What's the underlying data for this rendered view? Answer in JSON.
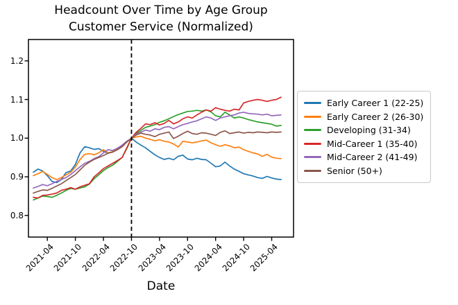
{
  "figure": {
    "title_line1": "Headcount Over Time by Age Group",
    "title_line2": "Customer Service (Normalized)",
    "xlabel": "Date"
  },
  "chart_data": {
    "type": "line",
    "title": "Headcount Over Time by Age Group",
    "subtitle": "Customer Service (Normalized)",
    "xlabel": "Date",
    "ylabel": "",
    "grid": false,
    "legend_position": "right-outside",
    "ylim": [
      0.743,
      1.254
    ],
    "y_ticks": [
      0.8,
      0.9,
      1.0,
      1.1,
      1.2
    ],
    "y_tick_labels": [
      "0.8",
      "0.9",
      "1.0",
      "1.1",
      "1.2"
    ],
    "x_tick_labels": [
      "2021-04",
      "2021-10",
      "2022-04",
      "2022-10",
      "2023-04",
      "2023-10",
      "2024-04",
      "2024-10",
      "2025-04"
    ],
    "x_tick_month_index": [
      3,
      9,
      15,
      21,
      27,
      33,
      39,
      45,
      51
    ],
    "normalization_vline": {
      "month": "2022-10",
      "index": 21,
      "style": "dashed",
      "color": "#000000"
    },
    "x": [
      "2021-01",
      "2021-02",
      "2021-03",
      "2021-04",
      "2021-05",
      "2021-06",
      "2021-07",
      "2021-08",
      "2021-09",
      "2021-10",
      "2021-11",
      "2021-12",
      "2022-01",
      "2022-02",
      "2022-03",
      "2022-04",
      "2022-05",
      "2022-06",
      "2022-07",
      "2022-08",
      "2022-09",
      "2022-10",
      "2022-11",
      "2022-12",
      "2023-01",
      "2023-02",
      "2023-03",
      "2023-04",
      "2023-05",
      "2023-06",
      "2023-07",
      "2023-08",
      "2023-09",
      "2023-10",
      "2023-11",
      "2023-12",
      "2024-01",
      "2024-02",
      "2024-03",
      "2024-04",
      "2024-05",
      "2024-06",
      "2024-07",
      "2024-08",
      "2024-09",
      "2024-10",
      "2024-11",
      "2024-12",
      "2025-01",
      "2025-02",
      "2025-03",
      "2025-04",
      "2025-05",
      "2025-06"
    ],
    "series": [
      {
        "name": "Early Career 1 (22-25)",
        "color": "#1f77b4",
        "values": [
          0.912,
          0.92,
          0.915,
          0.903,
          0.888,
          0.885,
          0.893,
          0.911,
          0.915,
          0.932,
          0.962,
          0.978,
          0.975,
          0.971,
          0.973,
          0.966,
          0.961,
          0.965,
          0.973,
          0.98,
          0.99,
          1.0,
          0.99,
          0.982,
          0.975,
          0.966,
          0.957,
          0.95,
          0.945,
          0.948,
          0.944,
          0.953,
          0.956,
          0.946,
          0.944,
          0.948,
          0.945,
          0.944,
          0.935,
          0.926,
          0.928,
          0.938,
          0.928,
          0.92,
          0.914,
          0.908,
          0.905,
          0.902,
          0.898,
          0.896,
          0.901,
          0.897,
          0.894,
          0.893
        ]
      },
      {
        "name": "Early Career 2 (26-30)",
        "color": "#ff7f0e",
        "values": [
          0.903,
          0.908,
          0.914,
          0.906,
          0.898,
          0.893,
          0.898,
          0.905,
          0.912,
          0.925,
          0.945,
          0.958,
          0.96,
          0.957,
          0.962,
          0.97,
          0.962,
          0.965,
          0.971,
          0.978,
          0.99,
          1.0,
          1.003,
          1.005,
          1.0,
          0.997,
          0.993,
          0.996,
          0.992,
          0.99,
          0.985,
          0.977,
          0.992,
          0.99,
          0.988,
          0.99,
          0.993,
          0.995,
          0.988,
          0.983,
          0.979,
          0.983,
          0.98,
          0.975,
          0.977,
          0.97,
          0.966,
          0.962,
          0.959,
          0.953,
          0.958,
          0.951,
          0.948,
          0.947
        ]
      },
      {
        "name": "Developing (31-34)",
        "color": "#2ca02c",
        "values": [
          0.84,
          0.845,
          0.85,
          0.849,
          0.847,
          0.852,
          0.858,
          0.865,
          0.87,
          0.868,
          0.871,
          0.874,
          0.881,
          0.895,
          0.905,
          0.916,
          0.924,
          0.93,
          0.94,
          0.95,
          0.973,
          1.0,
          1.012,
          1.02,
          1.028,
          1.031,
          1.035,
          1.041,
          1.045,
          1.05,
          1.056,
          1.061,
          1.065,
          1.069,
          1.07,
          1.072,
          1.07,
          1.073,
          1.068,
          1.058,
          1.055,
          1.067,
          1.06,
          1.052,
          1.055,
          1.052,
          1.048,
          1.045,
          1.042,
          1.04,
          1.038,
          1.036,
          1.031,
          1.033
        ]
      },
      {
        "name": "Mid-Career 1 (35-40)",
        "color": "#d62728",
        "values": [
          0.847,
          0.845,
          0.852,
          0.853,
          0.855,
          0.858,
          0.865,
          0.868,
          0.872,
          0.868,
          0.874,
          0.878,
          0.882,
          0.9,
          0.91,
          0.921,
          0.928,
          0.935,
          0.942,
          0.95,
          0.975,
          1.0,
          1.015,
          1.025,
          1.037,
          1.035,
          1.04,
          1.034,
          1.038,
          1.046,
          1.037,
          1.042,
          1.05,
          1.055,
          1.052,
          1.06,
          1.067,
          1.073,
          1.07,
          1.079,
          1.075,
          1.072,
          1.07,
          1.075,
          1.073,
          1.091,
          1.095,
          1.098,
          1.1,
          1.098,
          1.095,
          1.098,
          1.1,
          1.106
        ]
      },
      {
        "name": "Mid-Career 2 (41-49)",
        "color": "#9467bd",
        "values": [
          0.871,
          0.875,
          0.88,
          0.877,
          0.882,
          0.888,
          0.893,
          0.898,
          0.906,
          0.916,
          0.926,
          0.935,
          0.94,
          0.947,
          0.952,
          0.962,
          0.97,
          0.968,
          0.974,
          0.982,
          0.992,
          1.0,
          1.01,
          1.015,
          1.021,
          1.018,
          1.024,
          1.022,
          1.028,
          1.03,
          1.024,
          1.03,
          1.035,
          1.038,
          1.042,
          1.045,
          1.05,
          1.055,
          1.052,
          1.046,
          1.052,
          1.055,
          1.058,
          1.06,
          1.065,
          1.067,
          1.064,
          1.063,
          1.062,
          1.06,
          1.062,
          1.058,
          1.059,
          1.06
        ]
      },
      {
        "name": "Senior (50+)",
        "color": "#8c564b",
        "values": [
          0.858,
          0.862,
          0.866,
          0.865,
          0.87,
          0.876,
          0.882,
          0.89,
          0.898,
          0.906,
          0.918,
          0.93,
          0.938,
          0.945,
          0.95,
          0.955,
          0.961,
          0.964,
          0.97,
          0.978,
          0.99,
          1.0,
          1.008,
          1.013,
          1.01,
          1.008,
          1.004,
          1.01,
          1.013,
          1.016,
          0.999,
          1.005,
          1.012,
          1.018,
          1.012,
          1.01,
          1.014,
          1.013,
          1.01,
          1.007,
          1.015,
          1.019,
          1.012,
          1.014,
          1.016,
          1.013,
          1.015,
          1.014,
          1.016,
          1.015,
          1.014,
          1.016,
          1.015,
          1.016
        ]
      }
    ]
  }
}
